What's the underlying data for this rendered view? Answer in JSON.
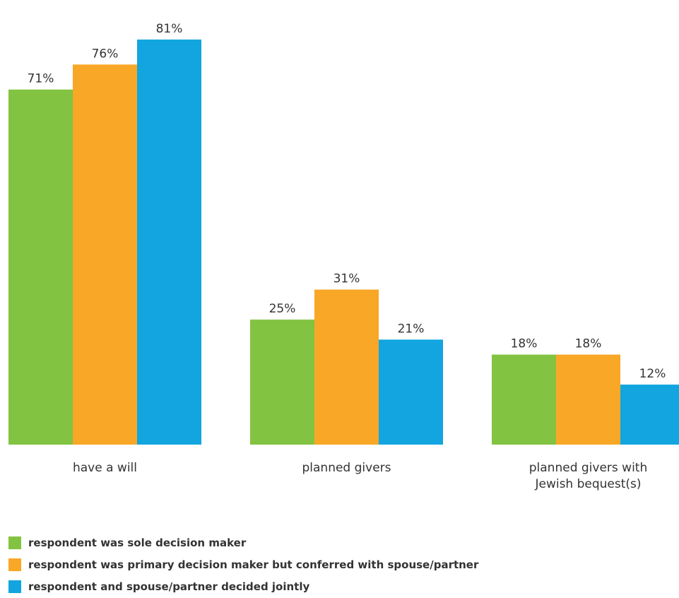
{
  "chart_data": {
    "type": "bar",
    "categories": [
      [
        "have a will"
      ],
      [
        "planned givers"
      ],
      [
        "planned givers with",
        "Jewish bequest(s)"
      ]
    ],
    "series": [
      {
        "name": "respondent was sole decision maker",
        "color": "#82c341",
        "values": [
          71,
          25,
          18
        ],
        "labels": [
          "71%",
          "25%",
          "18%"
        ]
      },
      {
        "name": "respondent was primary decision maker but conferred with spouse/partner",
        "color": "#f9a727",
        "values": [
          76,
          31,
          18
        ],
        "labels": [
          "76%",
          "31%",
          "18%"
        ]
      },
      {
        "name": "respondent and spouse/partner decided jointly",
        "color": "#12a5df",
        "values": [
          81,
          21,
          12
        ],
        "labels": [
          "81%",
          "21%",
          "12%"
        ]
      }
    ],
    "ylim": [
      0,
      100
    ],
    "grid": false,
    "legend": "bottom-left",
    "title": "",
    "xlabel": "",
    "ylabel": ""
  }
}
